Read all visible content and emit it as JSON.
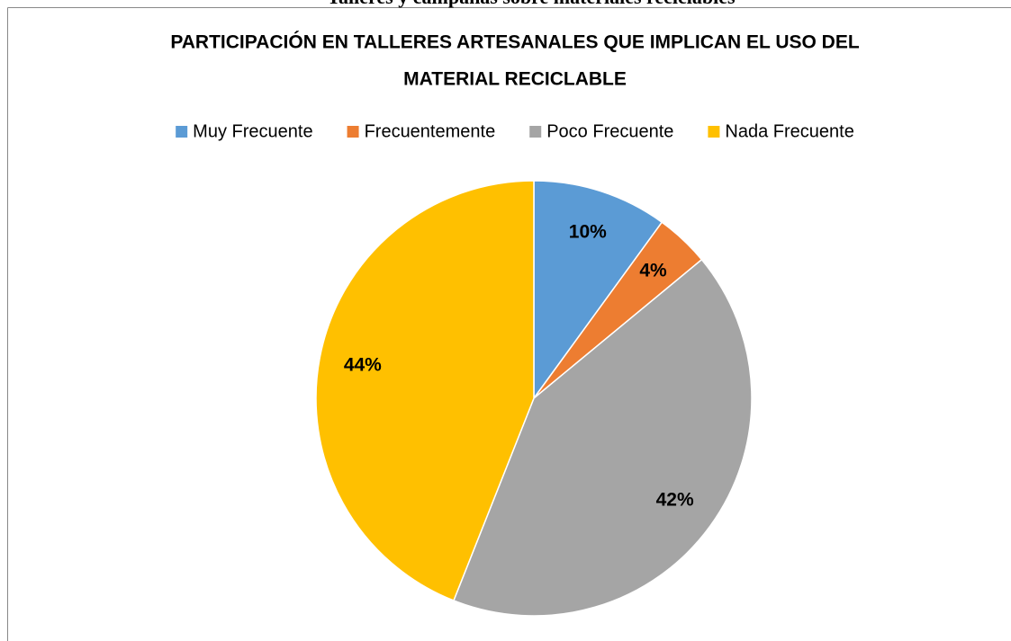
{
  "header": {
    "title": "Talleres y campañas sobre materiales reciclables"
  },
  "chart_data": {
    "type": "pie",
    "title": [
      "PARTICIPACIÓN EN TALLERES ARTESANALES QUE IMPLICAN EL USO DEL",
      "MATERIAL RECICLABLE"
    ],
    "categories": [
      "Muy Frecuente",
      "Frecuentemente",
      "Poco Frecuente",
      "Nada Frecuente"
    ],
    "values": [
      10,
      4,
      42,
      44
    ],
    "value_labels": [
      "10%",
      "4%",
      "42%",
      "44%"
    ],
    "colors": [
      "#5b9bd5",
      "#ed7d31",
      "#a5a5a5",
      "#ffc000"
    ],
    "legend": "top"
  }
}
